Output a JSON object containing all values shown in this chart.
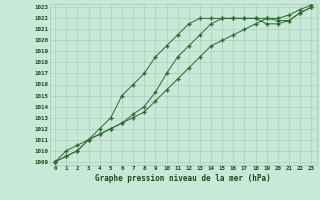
{
  "title": "Graphe pression niveau de la mer (hPa)",
  "hours": [
    0,
    1,
    2,
    3,
    4,
    5,
    6,
    7,
    8,
    9,
    10,
    11,
    12,
    13,
    14,
    15,
    16,
    17,
    18,
    19,
    20,
    21,
    22,
    23
  ],
  "line1": [
    1009,
    1010,
    1010.5,
    1011,
    1011.5,
    1012,
    1012.5,
    1013,
    1013.5,
    1014.5,
    1015.5,
    1016.5,
    1017.5,
    1018.5,
    1019.5,
    1020,
    1020.5,
    1021,
    1021.5,
    1022,
    1022,
    1022.3,
    1022.8,
    1023.2
  ],
  "line2": [
    1009,
    1009.5,
    1010,
    1011,
    1011.5,
    1012,
    1012.5,
    1013.3,
    1014,
    1015.3,
    1017,
    1018.5,
    1019.5,
    1020.5,
    1021.5,
    1022,
    1022,
    1022,
    1022,
    1022,
    1021.8,
    1021.8,
    1022.5,
    1023
  ],
  "line3": [
    1009,
    1009.5,
    1010,
    1011,
    1012,
    1013,
    1015,
    1016,
    1017,
    1018.5,
    1019.5,
    1020.5,
    1021.5,
    1022,
    1022,
    1022,
    1022,
    1022,
    1022,
    1021.5,
    1021.5,
    1021.8,
    1022.5,
    1023
  ],
  "line_color": "#2d6a2d",
  "bg_color": "#c8e8d8",
  "grid_color": "#a8c8b8",
  "text_color": "#1a4a1a",
  "ylim_min": 1009,
  "ylim_max": 1023,
  "yticks": [
    1009,
    1010,
    1011,
    1012,
    1013,
    1014,
    1015,
    1016,
    1017,
    1018,
    1019,
    1020,
    1021,
    1022,
    1023
  ]
}
